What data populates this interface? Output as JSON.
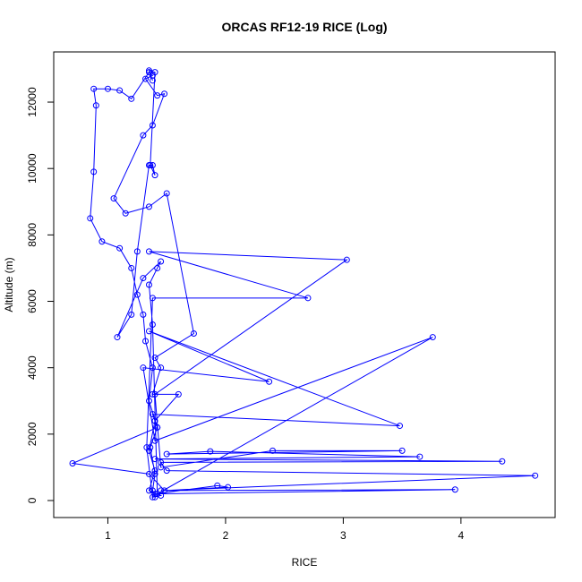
{
  "chart_data": {
    "type": "line",
    "title": "ORCAS RF12-19 RICE (Log)",
    "x_label": "RICE",
    "y_label": "Altitude (m)",
    "color": "#0000ff",
    "markers": true,
    "x": [
      1.4,
      1.38,
      1.4,
      1.36,
      1.42,
      1.35,
      1.38,
      1.32,
      1.3,
      1.25,
      1.2,
      1.1,
      0.95,
      0.85,
      0.88,
      0.9,
      0.88,
      1.0,
      1.1,
      1.2,
      1.35,
      1.38,
      1.32,
      1.42,
      1.48,
      1.38,
      1.3,
      1.05,
      1.15,
      1.35,
      1.5,
      1.73,
      1.4,
      1.45,
      1.38,
      1.6,
      1.4,
      1.35,
      1.4,
      1.35,
      1.45,
      1.38,
      1.33,
      1.38,
      2.7,
      1.35,
      3.03,
      1.4,
      1.45,
      2.4,
      3.5,
      1.5,
      1.87,
      3.65,
      1.4,
      4.35,
      1.45,
      1.5,
      4.63,
      1.45,
      3.95,
      1.4,
      1.93,
      2.02,
      1.48,
      1.35,
      0.7,
      1.42,
      1.38,
      3.48,
      1.35,
      2.37,
      1.3,
      1.4,
      3.76,
      1.42,
      1.38,
      1.35,
      1.42,
      1.45,
      1.3,
      1.08,
      1.2,
      1.25,
      1.35,
      1.38,
      1.4,
      1.36,
      1.4,
      1.35,
      1.38
    ],
    "values": [
      100,
      300,
      800,
      1600,
      2200,
      3000,
      4000,
      4800,
      5600,
      6200,
      7000,
      7600,
      7800,
      8500,
      9900,
      11900,
      12400,
      12400,
      12350,
      12100,
      12900,
      12800,
      12700,
      12200,
      12250,
      11300,
      11000,
      9100,
      8650,
      8850,
      9250,
      5030,
      4300,
      4000,
      3200,
      3200,
      2400,
      1500,
      900,
      300,
      150,
      100,
      1600,
      6100,
      6100,
      7500,
      7250,
      3200,
      1000,
      1500,
      1500,
      1400,
      1480,
      1320,
      1250,
      1180,
      1150,
      900,
      750,
      300,
      330,
      200,
      450,
      400,
      300,
      800,
      1120,
      2200,
      2600,
      2250,
      5100,
      3580,
      4000,
      1800,
      4920,
      200,
      5300,
      6500,
      7000,
      7200,
      6700,
      4920,
      5600,
      7500,
      10100,
      10100,
      9800,
      10100,
      12900,
      12950,
      12650
    ],
    "xlim": [
      0.54,
      4.8
    ],
    "ylim": [
      -512,
      13511
    ],
    "xticks": [
      1,
      2,
      3,
      4
    ],
    "yticks": [
      0,
      2000,
      4000,
      6000,
      8000,
      10000,
      12000
    ]
  }
}
